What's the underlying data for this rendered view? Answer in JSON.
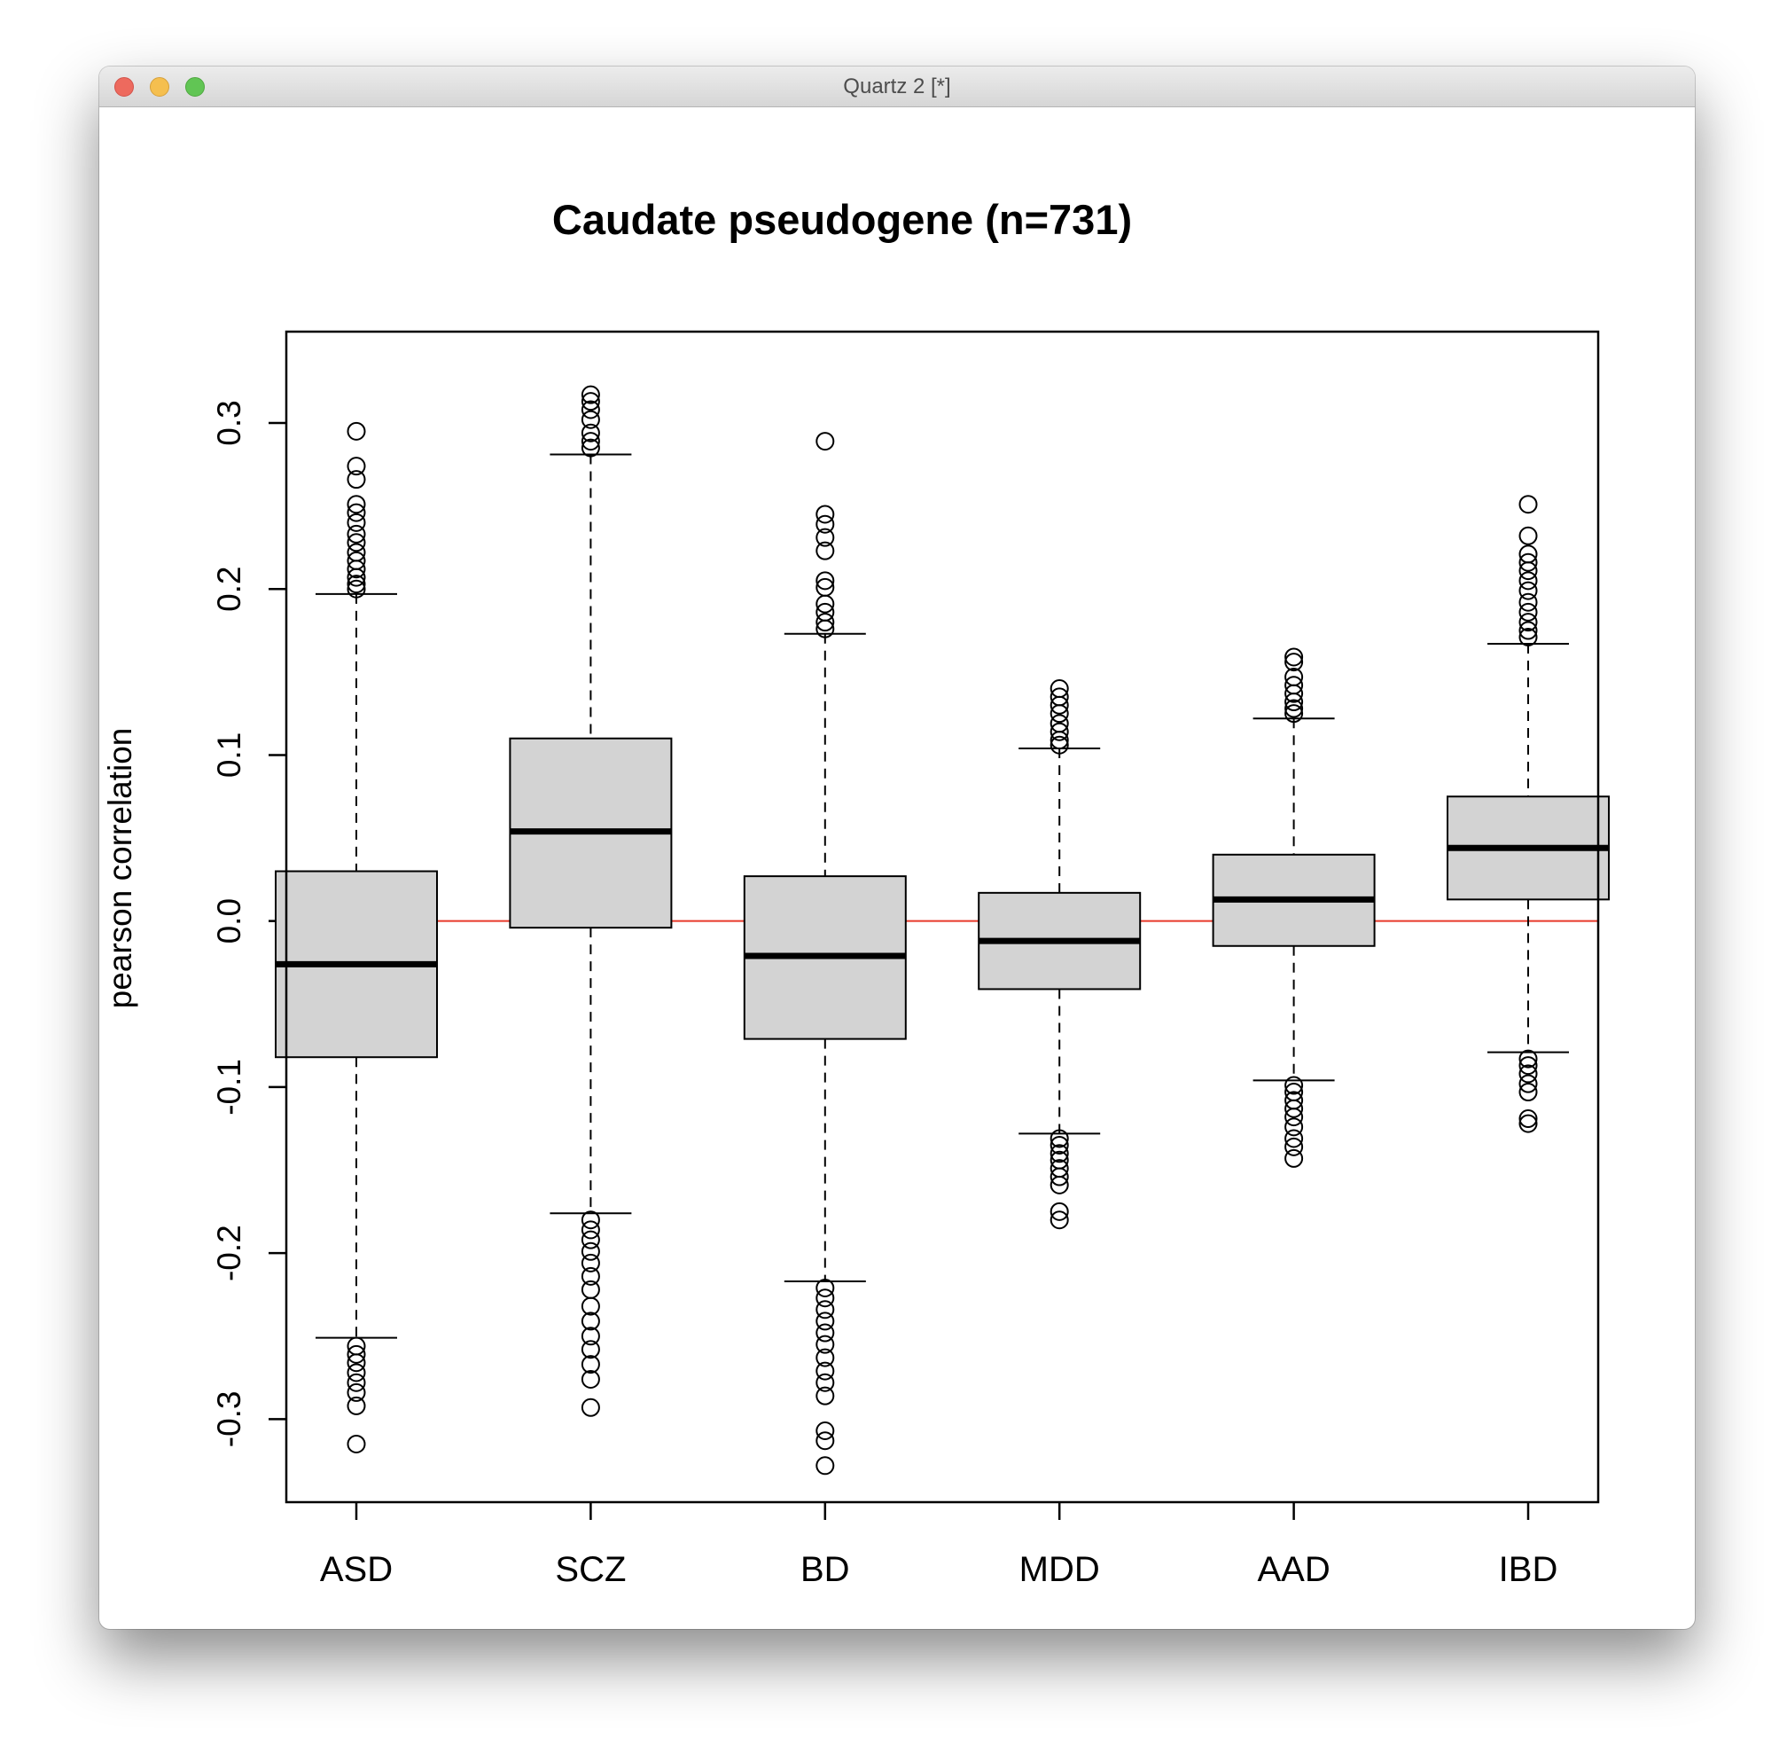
{
  "window": {
    "title": "Quartz 2 [*]"
  },
  "chart_data": {
    "type": "box",
    "title": "Caudate pseudogene (n=731)",
    "xlabel": "",
    "ylabel": "pearson correlation",
    "ylim": [
      -0.35,
      0.355
    ],
    "yticks": [
      -0.3,
      -0.2,
      -0.1,
      0.0,
      0.1,
      0.2,
      0.3
    ],
    "ytick_labels": [
      "-0.3",
      "-0.2",
      "-0.1",
      "0.0",
      "0.1",
      "0.2",
      "0.3"
    ],
    "reference_line": {
      "y": 0.0,
      "color": "#e8392a"
    },
    "box_fill": "#d3d3d3",
    "categories": [
      "ASD",
      "SCZ",
      "BD",
      "MDD",
      "AAD",
      "IBD"
    ],
    "boxes": [
      {
        "category": "ASD",
        "whisker_low": -0.251,
        "q1": -0.082,
        "median": -0.026,
        "q3": 0.03,
        "whisker_high": 0.197,
        "outliers": [
          0.295,
          0.274,
          0.266,
          0.251,
          0.246,
          0.24,
          0.233,
          0.228,
          0.222,
          0.217,
          0.212,
          0.207,
          0.203,
          0.2,
          -0.256,
          -0.261,
          -0.266,
          -0.272,
          -0.278,
          -0.284,
          -0.292,
          -0.315
        ]
      },
      {
        "category": "SCZ",
        "whisker_low": -0.176,
        "q1": -0.004,
        "median": 0.054,
        "q3": 0.11,
        "whisker_high": 0.281,
        "outliers": [
          0.317,
          0.313,
          0.308,
          0.302,
          0.294,
          0.289,
          0.285,
          -0.18,
          -0.186,
          -0.192,
          -0.199,
          -0.206,
          -0.214,
          -0.222,
          -0.232,
          -0.241,
          -0.25,
          -0.258,
          -0.267,
          -0.276,
          -0.293
        ]
      },
      {
        "category": "BD",
        "whisker_low": -0.217,
        "q1": -0.071,
        "median": -0.021,
        "q3": 0.027,
        "whisker_high": 0.173,
        "outliers": [
          0.289,
          0.245,
          0.239,
          0.231,
          0.223,
          0.205,
          0.201,
          0.191,
          0.186,
          0.18,
          0.176,
          -0.221,
          -0.227,
          -0.234,
          -0.241,
          -0.248,
          -0.255,
          -0.263,
          -0.271,
          -0.278,
          -0.286,
          -0.307,
          -0.313,
          -0.328
        ]
      },
      {
        "category": "MDD",
        "whisker_low": -0.128,
        "q1": -0.041,
        "median": -0.012,
        "q3": 0.017,
        "whisker_high": 0.104,
        "outliers": [
          0.14,
          0.135,
          0.13,
          0.125,
          0.119,
          0.114,
          0.109,
          0.106,
          -0.131,
          -0.135,
          -0.14,
          -0.144,
          -0.149,
          -0.154,
          -0.159,
          -0.175,
          -0.18
        ]
      },
      {
        "category": "AAD",
        "whisker_low": -0.096,
        "q1": -0.015,
        "median": 0.013,
        "q3": 0.04,
        "whisker_high": 0.122,
        "outliers": [
          0.159,
          0.156,
          0.147,
          0.142,
          0.137,
          0.132,
          0.128,
          0.125,
          -0.099,
          -0.103,
          -0.108,
          -0.113,
          -0.118,
          -0.124,
          -0.131,
          -0.136,
          -0.143
        ]
      },
      {
        "category": "IBD",
        "whisker_low": -0.079,
        "q1": 0.013,
        "median": 0.044,
        "q3": 0.075,
        "whisker_high": 0.167,
        "outliers": [
          0.251,
          0.232,
          0.221,
          0.216,
          0.211,
          0.205,
          0.199,
          0.192,
          0.186,
          0.18,
          0.175,
          0.171,
          -0.083,
          -0.087,
          -0.092,
          -0.098,
          -0.103,
          -0.119,
          -0.122
        ]
      }
    ]
  }
}
